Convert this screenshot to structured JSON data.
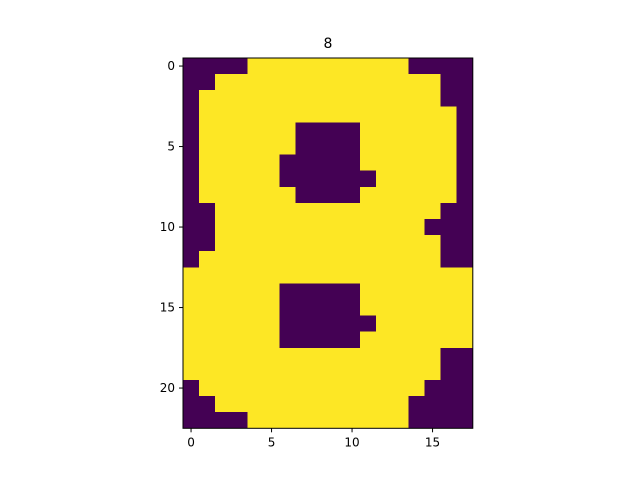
{
  "chart_data": {
    "type": "heatmap",
    "title": "8",
    "xlabel": "",
    "ylabel": "",
    "colormap": "viridis",
    "colors": {
      "low": "#440154",
      "high": "#fde725",
      "axis": "#000000",
      "background": "#ffffff"
    },
    "value_range": [
      0,
      1
    ],
    "xlim": [
      -0.5,
      17.5
    ],
    "ylim": [
      22.5,
      -0.5
    ],
    "xticks": [
      0,
      5,
      10,
      15
    ],
    "yticks": [
      0,
      5,
      10,
      15,
      20
    ],
    "grid": false,
    "n_cols": 18,
    "n_rows": 23,
    "values": [
      [
        0,
        0,
        0,
        0,
        1,
        1,
        1,
        1,
        1,
        1,
        1,
        1,
        1,
        1,
        0,
        0,
        0,
        0
      ],
      [
        0,
        0,
        1,
        1,
        1,
        1,
        1,
        1,
        1,
        1,
        1,
        1,
        1,
        1,
        1,
        1,
        0,
        0
      ],
      [
        0,
        1,
        1,
        1,
        1,
        1,
        1,
        1,
        1,
        1,
        1,
        1,
        1,
        1,
        1,
        1,
        0,
        0
      ],
      [
        0,
        1,
        1,
        1,
        1,
        1,
        1,
        1,
        1,
        1,
        1,
        1,
        1,
        1,
        1,
        1,
        1,
        0
      ],
      [
        0,
        1,
        1,
        1,
        1,
        1,
        1,
        0,
        0,
        0,
        0,
        1,
        1,
        1,
        1,
        1,
        1,
        0
      ],
      [
        0,
        1,
        1,
        1,
        1,
        1,
        1,
        0,
        0,
        0,
        0,
        1,
        1,
        1,
        1,
        1,
        1,
        0
      ],
      [
        0,
        1,
        1,
        1,
        1,
        1,
        0,
        0,
        0,
        0,
        0,
        1,
        1,
        1,
        1,
        1,
        1,
        0
      ],
      [
        0,
        1,
        1,
        1,
        1,
        1,
        0,
        0,
        0,
        0,
        0,
        0,
        1,
        1,
        1,
        1,
        1,
        0
      ],
      [
        0,
        1,
        1,
        1,
        1,
        1,
        1,
        0,
        0,
        0,
        0,
        1,
        1,
        1,
        1,
        1,
        1,
        0
      ],
      [
        0,
        0,
        1,
        1,
        1,
        1,
        1,
        1,
        1,
        1,
        1,
        1,
        1,
        1,
        1,
        1,
        0,
        0
      ],
      [
        0,
        0,
        1,
        1,
        1,
        1,
        1,
        1,
        1,
        1,
        1,
        1,
        1,
        1,
        1,
        0,
        0,
        0
      ],
      [
        0,
        0,
        1,
        1,
        1,
        1,
        1,
        1,
        1,
        1,
        1,
        1,
        1,
        1,
        1,
        1,
        0,
        0
      ],
      [
        0,
        1,
        1,
        1,
        1,
        1,
        1,
        1,
        1,
        1,
        1,
        1,
        1,
        1,
        1,
        1,
        0,
        0
      ],
      [
        1,
        1,
        1,
        1,
        1,
        1,
        1,
        1,
        1,
        1,
        1,
        1,
        1,
        1,
        1,
        1,
        1,
        1
      ],
      [
        1,
        1,
        1,
        1,
        1,
        1,
        0,
        0,
        0,
        0,
        0,
        1,
        1,
        1,
        1,
        1,
        1,
        1
      ],
      [
        1,
        1,
        1,
        1,
        1,
        1,
        0,
        0,
        0,
        0,
        0,
        1,
        1,
        1,
        1,
        1,
        1,
        1
      ],
      [
        1,
        1,
        1,
        1,
        1,
        1,
        0,
        0,
        0,
        0,
        0,
        0,
        1,
        1,
        1,
        1,
        1,
        1
      ],
      [
        1,
        1,
        1,
        1,
        1,
        1,
        0,
        0,
        0,
        0,
        0,
        1,
        1,
        1,
        1,
        1,
        1,
        1
      ],
      [
        1,
        1,
        1,
        1,
        1,
        1,
        1,
        1,
        1,
        1,
        1,
        1,
        1,
        1,
        1,
        1,
        0,
        0
      ],
      [
        1,
        1,
        1,
        1,
        1,
        1,
        1,
        1,
        1,
        1,
        1,
        1,
        1,
        1,
        1,
        1,
        0,
        0
      ],
      [
        0,
        1,
        1,
        1,
        1,
        1,
        1,
        1,
        1,
        1,
        1,
        1,
        1,
        1,
        1,
        0,
        0,
        0
      ],
      [
        0,
        0,
        1,
        1,
        1,
        1,
        1,
        1,
        1,
        1,
        1,
        1,
        1,
        1,
        0,
        0,
        0,
        0
      ],
      [
        0,
        0,
        0,
        0,
        1,
        1,
        1,
        1,
        1,
        1,
        1,
        1,
        1,
        1,
        0,
        0,
        0,
        0
      ]
    ]
  }
}
